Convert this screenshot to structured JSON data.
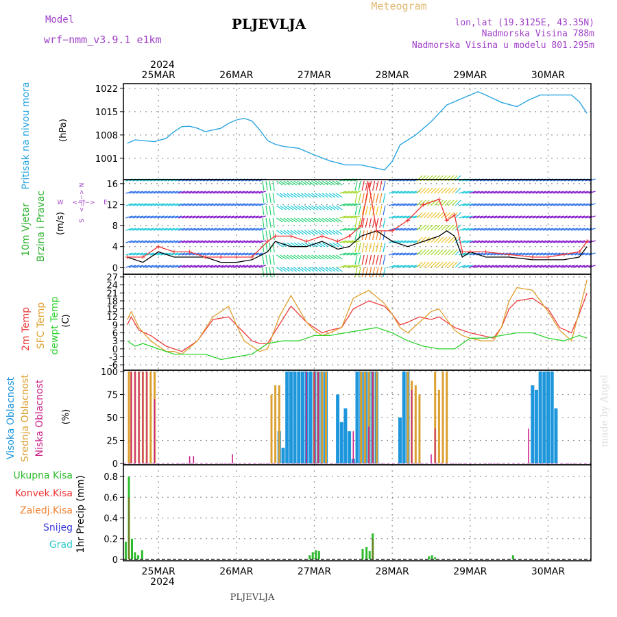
{
  "header": {
    "model_label": "Model",
    "model_name": "wrf−nmm_v3.9.1  e1km",
    "title": "PLJEVLJA",
    "meteogram": "Meteogram",
    "lonlat": "lon,lat (19.3125E, 43.35N)",
    "elevation": "Nadmorska Visina 788m",
    "model_elevation": "Nadmorska Visina u modelu 801.295m",
    "footer": "PLJEVLJA",
    "credit": "made by Angel"
  },
  "colors": {
    "pressure": "#2aa6e0",
    "wind_label": "#2db32d",
    "t2m": "#ee3b3b",
    "sfc": "#e0a030",
    "dewpt": "#2dd22d",
    "high_cloud": "#1e96dc",
    "mid_cloud": "#dca030",
    "low_cloud": "#cc2288",
    "rain_total": "#2dbb2d",
    "rain_conv": "#ee3333",
    "freezing": "#f08030",
    "snow": "#3a3ad8",
    "grad": "#30c8c8",
    "title_purple": "#a040c8"
  },
  "chart_data": [
    {
      "type": "line",
      "panel": "pressure",
      "ylabel": "Pritisak na nivou mora",
      "unit": "(hPa)",
      "ylim": [
        995,
        1023
      ],
      "yticks": [
        1001,
        1008,
        1015,
        1022
      ],
      "x_unit": "day of month (March 2024)",
      "x": [
        24.6,
        24.7,
        24.8,
        24.95,
        25.1,
        25.2,
        25.3,
        25.4,
        25.5,
        25.6,
        25.8,
        25.9,
        26.0,
        26.1,
        26.2,
        26.3,
        26.4,
        26.5,
        26.6,
        26.8,
        27.0,
        27.2,
        27.4,
        27.6,
        27.8,
        27.9,
        28.0,
        28.1,
        28.3,
        28.5,
        28.7,
        28.9,
        29.1,
        29.2,
        29.4,
        29.6,
        29.75,
        29.9,
        30.1,
        30.3,
        30.4,
        30.5
      ],
      "values": [
        1005.5,
        1006.5,
        1006.3,
        1006.0,
        1007.0,
        1009.0,
        1010.5,
        1010.6,
        1010.0,
        1009.0,
        1010.0,
        1011.5,
        1012.5,
        1013.0,
        1012.2,
        1009.5,
        1006.3,
        1005.2,
        1004.6,
        1004.0,
        1002.0,
        1000.2,
        999.0,
        999.0,
        998.0,
        997.5,
        1000.0,
        1005.0,
        1008.0,
        1012.0,
        1017.0,
        1019.0,
        1021.0,
        1020.0,
        1017.8,
        1016.5,
        1018.5,
        1020.0,
        1020.0,
        1020.0,
        1018.0,
        1014.5
      ]
    },
    {
      "type": "line",
      "panel": "wind",
      "ylabel": "10m Vjetar Brzina i Pravac",
      "unit": "(m/s)",
      "ylim": [
        -1,
        16.5
      ],
      "yticks": [
        0,
        4,
        8,
        12,
        16
      ],
      "compass": {
        "n": "N",
        "s": "S",
        "e": "E",
        "w": "W",
        "arrows": "<−|−>"
      },
      "barb_colors": [
        "#8010c8",
        "#2a6ee8",
        "#18c8d8",
        "#20d070",
        "#a0d820",
        "#f0c020",
        "#f08020",
        "#e02828"
      ],
      "series": [
        {
          "name": "speed",
          "x": [
            24.6,
            24.8,
            25.0,
            25.2,
            25.4,
            25.6,
            25.8,
            26.0,
            26.2,
            26.4,
            26.5,
            26.7,
            26.9,
            27.1,
            27.3,
            27.45,
            27.6,
            27.8,
            28.0,
            28.2,
            28.4,
            28.6,
            28.7,
            28.8,
            28.9,
            29.0,
            29.2,
            29.5,
            29.8,
            30.0,
            30.2,
            30.4,
            30.5
          ],
          "values": [
            2,
            1,
            3,
            2,
            2,
            2,
            1,
            1,
            1.5,
            3,
            5,
            4,
            4,
            5,
            3.5,
            4,
            6,
            7,
            5,
            4,
            5,
            6,
            7,
            6,
            2,
            3,
            2,
            2,
            1.5,
            1.5,
            1.5,
            2,
            4
          ]
        },
        {
          "name": "gust",
          "x": [
            24.6,
            24.8,
            25.0,
            25.2,
            25.4,
            25.6,
            25.8,
            26.0,
            26.2,
            26.4,
            26.5,
            26.7,
            26.9,
            27.1,
            27.3,
            27.45,
            27.6,
            27.7,
            27.8,
            28.0,
            28.2,
            28.4,
            28.6,
            28.7,
            28.8,
            28.9,
            29.0,
            29.2,
            29.5,
            29.8,
            30.0,
            30.2,
            30.4,
            30.5
          ],
          "values": [
            2,
            2,
            4,
            3,
            3,
            2,
            2,
            2,
            2,
            5,
            6,
            6,
            5,
            6,
            5,
            6,
            8,
            16,
            7,
            7,
            9,
            12,
            13,
            9,
            10,
            3,
            3,
            3,
            2.5,
            2,
            2,
            2.5,
            3,
            5
          ]
        }
      ]
    },
    {
      "type": "line",
      "panel": "temperature",
      "ylabel": [
        "2m Temp",
        "SFC Temp",
        "dewpt Temp"
      ],
      "unit": "(C)",
      "ylim": [
        -7.5,
        27.5
      ],
      "yticks": [
        -6,
        -3,
        0,
        3,
        6,
        9,
        12,
        15,
        18,
        21,
        24,
        27
      ],
      "series": [
        {
          "name": "2m Temp",
          "x": [
            24.6,
            24.65,
            24.75,
            24.9,
            25.0,
            25.1,
            25.2,
            25.3,
            25.5,
            25.7,
            25.9,
            26.0,
            26.1,
            26.2,
            26.3,
            26.4,
            26.55,
            26.7,
            26.9,
            27.0,
            27.1,
            27.2,
            27.35,
            27.5,
            27.7,
            27.9,
            28.0,
            28.1,
            28.2,
            28.35,
            28.5,
            28.6,
            28.8,
            28.9,
            29.0,
            29.15,
            29.3,
            29.4,
            29.5,
            29.6,
            29.8,
            30.0,
            30.15,
            30.3,
            30.4,
            30.5
          ],
          "values": [
            9,
            12,
            7,
            5,
            3,
            1,
            0,
            -1,
            3,
            11,
            12,
            9,
            6,
            3,
            2,
            2,
            9,
            16,
            10,
            8,
            6,
            7,
            8,
            15,
            18,
            16,
            13,
            9,
            10,
            12,
            11,
            12,
            8,
            7,
            6,
            5,
            4,
            8,
            15,
            18,
            19,
            15,
            8,
            6,
            13,
            21
          ]
        },
        {
          "name": "SFC Temp",
          "x": [
            24.6,
            24.65,
            24.75,
            24.9,
            25.0,
            25.1,
            25.2,
            25.3,
            25.5,
            25.7,
            25.9,
            26.0,
            26.1,
            26.2,
            26.3,
            26.4,
            26.55,
            26.7,
            26.9,
            27.0,
            27.1,
            27.2,
            27.35,
            27.5,
            27.7,
            27.9,
            28.0,
            28.1,
            28.2,
            28.35,
            28.5,
            28.6,
            28.8,
            28.9,
            29.0,
            29.15,
            29.3,
            29.4,
            29.5,
            29.6,
            29.8,
            30.0,
            30.15,
            30.3,
            30.4,
            30.5
          ],
          "values": [
            11,
            14,
            8,
            3,
            1,
            -1,
            -1,
            -2,
            3,
            12,
            16,
            9,
            3,
            1,
            -1,
            0,
            12,
            20,
            10,
            7,
            5,
            6,
            8,
            19,
            22,
            17,
            13,
            8,
            6,
            10,
            14,
            15,
            7,
            5,
            4,
            3,
            3,
            8,
            18,
            23,
            22,
            14,
            7,
            3,
            14,
            26
          ]
        },
        {
          "name": "dewpt Temp",
          "x": [
            24.6,
            24.7,
            24.8,
            25.0,
            25.2,
            25.4,
            25.6,
            25.8,
            26.0,
            26.2,
            26.4,
            26.6,
            26.8,
            27.0,
            27.2,
            27.4,
            27.6,
            27.8,
            28.0,
            28.2,
            28.4,
            28.6,
            28.8,
            29.0,
            29.2,
            29.4,
            29.6,
            29.8,
            30.0,
            30.2,
            30.4,
            30.5
          ],
          "values": [
            3,
            1,
            2,
            0,
            -2,
            -2,
            -2,
            -4,
            -3,
            -2,
            2,
            3,
            3,
            5,
            5,
            6,
            7,
            8,
            6,
            3,
            1,
            0,
            0,
            4,
            4,
            5,
            6,
            6,
            4,
            3,
            5,
            4
          ]
        }
      ]
    },
    {
      "type": "bar",
      "panel": "clouds",
      "ylabel": [
        "Visoka Oblacnost",
        "Srednja Oblacnost",
        "Niska Oblacnost"
      ],
      "unit": "(%)",
      "ylim": [
        0,
        100
      ],
      "yticks": [
        0,
        25,
        50,
        75,
        100
      ],
      "series": [
        {
          "name": "Visoka Oblacnost",
          "x": [
            26.55,
            26.6,
            26.65,
            26.7,
            26.75,
            26.8,
            26.85,
            26.9,
            26.95,
            27.0,
            27.05,
            27.1,
            27.15,
            27.3,
            27.35,
            27.4,
            27.45,
            27.5,
            27.55,
            27.6,
            27.65,
            27.7,
            27.75,
            27.8,
            28.1,
            28.15,
            28.2,
            29.8,
            29.85,
            29.9,
            29.95,
            30.0,
            30.05,
            30.1
          ],
          "values": [
            35,
            17,
            100,
            100,
            100,
            100,
            100,
            100,
            100,
            100,
            100,
            100,
            100,
            75,
            45,
            60,
            35,
            5,
            100,
            100,
            100,
            100,
            100,
            100,
            50,
            100,
            100,
            85,
            80,
            100,
            100,
            100,
            100,
            60
          ]
        },
        {
          "name": "Srednja Oblacnost",
          "x": [
            24.62,
            24.65,
            24.7,
            24.75,
            24.8,
            24.85,
            24.9,
            24.95,
            26.45,
            26.5,
            26.55,
            27.0,
            27.05,
            27.1,
            27.15,
            27.6,
            27.65,
            27.7,
            27.75,
            27.8,
            28.2,
            28.25,
            28.3,
            28.35,
            28.55,
            28.6,
            28.65,
            28.7
          ],
          "values": [
            100,
            100,
            100,
            100,
            100,
            100,
            100,
            100,
            75,
            85,
            85,
            100,
            100,
            100,
            100,
            100,
            100,
            100,
            100,
            100,
            100,
            90,
            85,
            75,
            100,
            80,
            100,
            100
          ]
        },
        {
          "name": "Niska Oblacnost",
          "x": [
            24.65,
            24.7,
            24.75,
            24.8,
            24.85,
            24.95,
            25.4,
            25.45,
            25.95,
            26.9,
            27.0,
            27.05,
            27.5,
            27.7,
            27.75,
            28.25,
            28.5,
            28.55,
            29.75
          ],
          "values": [
            100,
            100,
            100,
            100,
            100,
            70,
            8,
            8,
            10,
            100,
            100,
            100,
            35,
            40,
            100,
            80,
            10,
            38,
            38
          ]
        }
      ]
    },
    {
      "type": "bar",
      "panel": "precip",
      "ylabel": "1hr Precip (mm)",
      "legend": [
        "Ukupna  Kisa",
        "Konvek.Kisa",
        "Zaledj.Kisa",
        "Snijeg",
        "Grad"
      ],
      "ylim": [
        0,
        0.9
      ],
      "yticks": [
        0,
        0.2,
        0.4,
        0.6,
        0.8
      ],
      "series": [
        {
          "name": "Ukupna  Kisa",
          "x": [
            24.58,
            24.62,
            24.66,
            24.7,
            24.74,
            24.79,
            26.94,
            26.98,
            27.02,
            27.06,
            27.62,
            27.67,
            27.71,
            27.75,
            28.47,
            28.51,
            28.55,
            29.55
          ],
          "values": [
            0.17,
            0.8,
            0.2,
            0.07,
            0.04,
            0.09,
            0.04,
            0.07,
            0.09,
            0.08,
            0.1,
            0.12,
            0.08,
            0.25,
            0.03,
            0.04,
            0.02,
            0.04
          ]
        },
        {
          "name": "Konvek.Kisa",
          "x": [
            24.62,
            27.75
          ],
          "values": [
            0.6,
            0.2
          ]
        }
      ]
    }
  ],
  "x_axis": {
    "year": "2024",
    "days": [
      "25MAR",
      "26MAR",
      "27MAR",
      "28MAR",
      "29MAR",
      "30MAR"
    ],
    "day_values": [
      25,
      26,
      27,
      28,
      29,
      30
    ],
    "xlim": [
      24.55,
      30.55
    ]
  }
}
